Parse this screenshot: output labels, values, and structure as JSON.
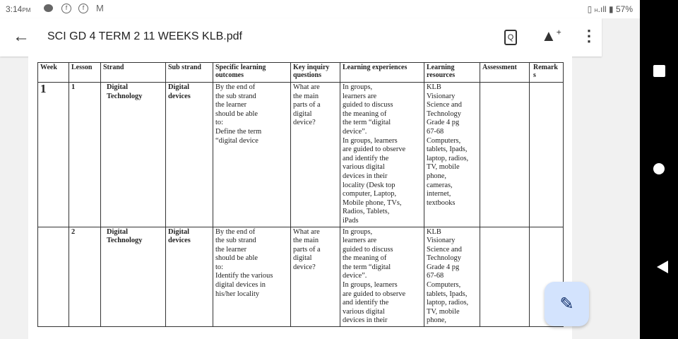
{
  "status": {
    "time": "3:14",
    "ampm": "PM",
    "battery": "57%",
    "network": "H"
  },
  "appbar": {
    "title": "SCI GD 4 TERM 2 11 WEEKS KLB.pdf"
  },
  "table": {
    "headers": [
      "Week",
      "Lesson",
      "Strand",
      "Sub strand",
      "Specific learning outcomes",
      "Key inquiry questions",
      "Learning experiences",
      "Learning resources",
      "Assessment",
      "Remark s"
    ],
    "rows": [
      {
        "week": "1",
        "lesson": "1",
        "strand": [
          "Digital",
          "Technology"
        ],
        "sub_strand": [
          "Digital",
          "devices"
        ],
        "outcomes": [
          "By the end of",
          "the sub strand",
          "the learner",
          "should be able",
          "to:",
          "Define the term",
          "“digital device"
        ],
        "questions": [
          "What are",
          "the main",
          "parts of a",
          "digital",
          "device?"
        ],
        "experiences": [
          "In groups,",
          "learners are",
          "guided to discuss",
          "the meaning of",
          "the term “digital",
          "device”.",
          "In groups, learners",
          "are guided to observe",
          "and identify the",
          "various digital",
          "devices in their",
          "locality (Desk top",
          "computer, Laptop,",
          "Mobile phone, TVs,",
          "Radios, Tablets,",
          "iPads"
        ],
        "resources": [
          "KLB",
          "Visionary",
          "Science and",
          "Technology",
          "Grade 4 pg",
          "67-68",
          "Computers,",
          "tablets, Ipads,",
          "laptop, radios,",
          "TV, mobile",
          "phone,",
          "cameras,",
          "internet,",
          "textbooks"
        ],
        "assessment": "",
        "remarks": ""
      },
      {
        "week": "",
        "lesson": "2",
        "strand": [
          "Digital",
          "Technology"
        ],
        "sub_strand": [
          "Digital",
          "devices"
        ],
        "outcomes": [
          "By the end of",
          "the sub strand",
          "the learner",
          "should be able",
          "to:",
          "Identify the various",
          "digital devices in",
          "his/her locality"
        ],
        "questions": [
          "What are",
          "the main",
          "parts of a",
          "digital",
          "device?"
        ],
        "experiences": [
          "In groups,",
          "learners are",
          "guided to discuss",
          "the meaning of",
          "the term “digital",
          "device”.",
          "In groups, learners",
          "are guided to observe",
          "and identify the",
          "various digital",
          "devices in their"
        ],
        "resources": [
          "KLB",
          "Visionary",
          "Science and",
          "Technology",
          "Grade 4 pg",
          "67-68",
          "Computers,",
          "tablets, Ipads,",
          "laptop, radios,",
          "TV, mobile",
          "phone,"
        ],
        "assessment": "",
        "remarks": ""
      }
    ]
  },
  "icons": {
    "back": "arrow-left-icon",
    "search": "document-search-icon",
    "drive": "drive-add-icon",
    "more": "more-vert-icon",
    "fab": "annotate-pen-icon"
  }
}
